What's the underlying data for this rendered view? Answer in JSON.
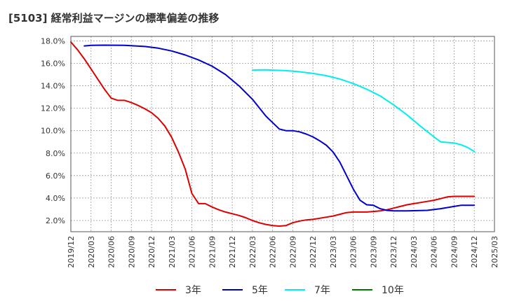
{
  "chart_data": {
    "type": "line",
    "title": "[5103]  経常利益マージンの標準偏差の推移",
    "xlabel": "",
    "ylabel": "",
    "ylim": [
      1.0,
      18.4
    ],
    "grid": true,
    "legend_position": "bottom",
    "x_ticks": [
      "2019/12",
      "2020/03",
      "2020/06",
      "2020/09",
      "2020/12",
      "2021/03",
      "2021/06",
      "2021/09",
      "2021/12",
      "2022/03",
      "2022/06",
      "2022/09",
      "2022/12",
      "2023/03",
      "2023/06",
      "2023/09",
      "2023/12",
      "2024/03",
      "2024/06",
      "2024/09",
      "2024/12",
      "2025/03"
    ],
    "y_ticks": [
      2.0,
      4.0,
      6.0,
      8.0,
      10.0,
      12.0,
      14.0,
      16.0,
      18.0
    ],
    "y_tick_labels": [
      "2.0%",
      "4.0%",
      "6.0%",
      "8.0%",
      "10.0%",
      "12.0%",
      "14.0%",
      "16.0%",
      "18.0%"
    ],
    "series": [
      {
        "name": "3年",
        "color": "#dd0000",
        "points": [
          [
            "2019/12",
            17.9
          ],
          [
            "2020/01",
            17.2
          ],
          [
            "2020/02",
            16.4
          ],
          [
            "2020/03",
            15.5
          ],
          [
            "2020/04",
            14.6
          ],
          [
            "2020/05",
            13.7
          ],
          [
            "2020/06",
            12.9
          ],
          [
            "2020/07",
            12.7
          ],
          [
            "2020/08",
            12.7
          ],
          [
            "2020/09",
            12.5
          ],
          [
            "2020/10",
            12.25
          ],
          [
            "2020/11",
            11.95
          ],
          [
            "2020/12",
            11.6
          ],
          [
            "2021/01",
            11.1
          ],
          [
            "2021/02",
            10.4
          ],
          [
            "2021/03",
            9.4
          ],
          [
            "2021/04",
            8.1
          ],
          [
            "2021/05",
            6.6
          ],
          [
            "2021/06",
            4.4
          ],
          [
            "2021/07",
            3.5
          ],
          [
            "2021/08",
            3.5
          ],
          [
            "2021/09",
            3.2
          ],
          [
            "2021/10",
            2.95
          ],
          [
            "2021/11",
            2.75
          ],
          [
            "2021/12",
            2.6
          ],
          [
            "2022/01",
            2.45
          ],
          [
            "2022/02",
            2.25
          ],
          [
            "2022/03",
            2.0
          ],
          [
            "2022/04",
            1.8
          ],
          [
            "2022/05",
            1.65
          ],
          [
            "2022/06",
            1.55
          ],
          [
            "2022/07",
            1.5
          ],
          [
            "2022/08",
            1.55
          ],
          [
            "2022/09",
            1.8
          ],
          [
            "2022/10",
            1.95
          ],
          [
            "2022/11",
            2.05
          ],
          [
            "2022/12",
            2.1
          ],
          [
            "2023/01",
            2.2
          ],
          [
            "2023/02",
            2.3
          ],
          [
            "2023/03",
            2.4
          ],
          [
            "2023/04",
            2.55
          ],
          [
            "2023/05",
            2.7
          ],
          [
            "2023/06",
            2.75
          ],
          [
            "2023/07",
            2.75
          ],
          [
            "2023/08",
            2.75
          ],
          [
            "2023/09",
            2.8
          ],
          [
            "2023/10",
            2.85
          ],
          [
            "2023/11",
            2.95
          ],
          [
            "2023/12",
            3.1
          ],
          [
            "2024/01",
            3.25
          ],
          [
            "2024/02",
            3.4
          ],
          [
            "2024/03",
            3.5
          ],
          [
            "2024/04",
            3.6
          ],
          [
            "2024/05",
            3.7
          ],
          [
            "2024/06",
            3.8
          ],
          [
            "2024/07",
            3.95
          ],
          [
            "2024/08",
            4.1
          ],
          [
            "2024/09",
            4.15
          ],
          [
            "2024/10",
            4.15
          ],
          [
            "2024/11",
            4.15
          ],
          [
            "2024/12",
            4.15
          ]
        ]
      },
      {
        "name": "5年",
        "color": "#0000cc",
        "points": [
          [
            "2020/02",
            17.55
          ],
          [
            "2020/03",
            17.6
          ],
          [
            "2020/05",
            17.62
          ],
          [
            "2020/08",
            17.6
          ],
          [
            "2020/11",
            17.5
          ],
          [
            "2021/01",
            17.35
          ],
          [
            "2021/03",
            17.1
          ],
          [
            "2021/05",
            16.75
          ],
          [
            "2021/07",
            16.3
          ],
          [
            "2021/09",
            15.75
          ],
          [
            "2021/11",
            15.0
          ],
          [
            "2022/01",
            14.0
          ],
          [
            "2022/03",
            12.8
          ],
          [
            "2022/05",
            11.3
          ],
          [
            "2022/07",
            10.15
          ],
          [
            "2022/08",
            10.0
          ],
          [
            "2022/09",
            10.0
          ],
          [
            "2022/10",
            9.9
          ],
          [
            "2022/11",
            9.7
          ],
          [
            "2022/12",
            9.45
          ],
          [
            "2023/01",
            9.1
          ],
          [
            "2023/02",
            8.7
          ],
          [
            "2023/03",
            8.1
          ],
          [
            "2023/04",
            7.2
          ],
          [
            "2023/05",
            6.0
          ],
          [
            "2023/06",
            4.8
          ],
          [
            "2023/07",
            3.8
          ],
          [
            "2023/08",
            3.4
          ],
          [
            "2023/09",
            3.35
          ],
          [
            "2023/10",
            3.05
          ],
          [
            "2023/11",
            2.9
          ],
          [
            "2023/12",
            2.85
          ],
          [
            "2024/02",
            2.85
          ],
          [
            "2024/05",
            2.9
          ],
          [
            "2024/07",
            3.05
          ],
          [
            "2024/09",
            3.25
          ],
          [
            "2024/10",
            3.35
          ],
          [
            "2024/12",
            3.35
          ]
        ]
      },
      {
        "name": "7年",
        "color": "#00eeee",
        "points": [
          [
            "2022/03",
            15.4
          ],
          [
            "2022/05",
            15.42
          ],
          [
            "2022/08",
            15.35
          ],
          [
            "2022/10",
            15.25
          ],
          [
            "2022/12",
            15.1
          ],
          [
            "2023/02",
            14.9
          ],
          [
            "2023/04",
            14.6
          ],
          [
            "2023/06",
            14.2
          ],
          [
            "2023/08",
            13.7
          ],
          [
            "2023/10",
            13.1
          ],
          [
            "2023/12",
            12.3
          ],
          [
            "2024/02",
            11.4
          ],
          [
            "2024/04",
            10.4
          ],
          [
            "2024/06",
            9.45
          ],
          [
            "2024/07",
            9.0
          ],
          [
            "2024/08",
            8.95
          ],
          [
            "2024/09",
            8.9
          ],
          [
            "2024/10",
            8.75
          ],
          [
            "2024/11",
            8.5
          ],
          [
            "2024/12",
            8.15
          ]
        ]
      },
      {
        "name": "10年",
        "color": "#007700",
        "points": []
      }
    ]
  }
}
